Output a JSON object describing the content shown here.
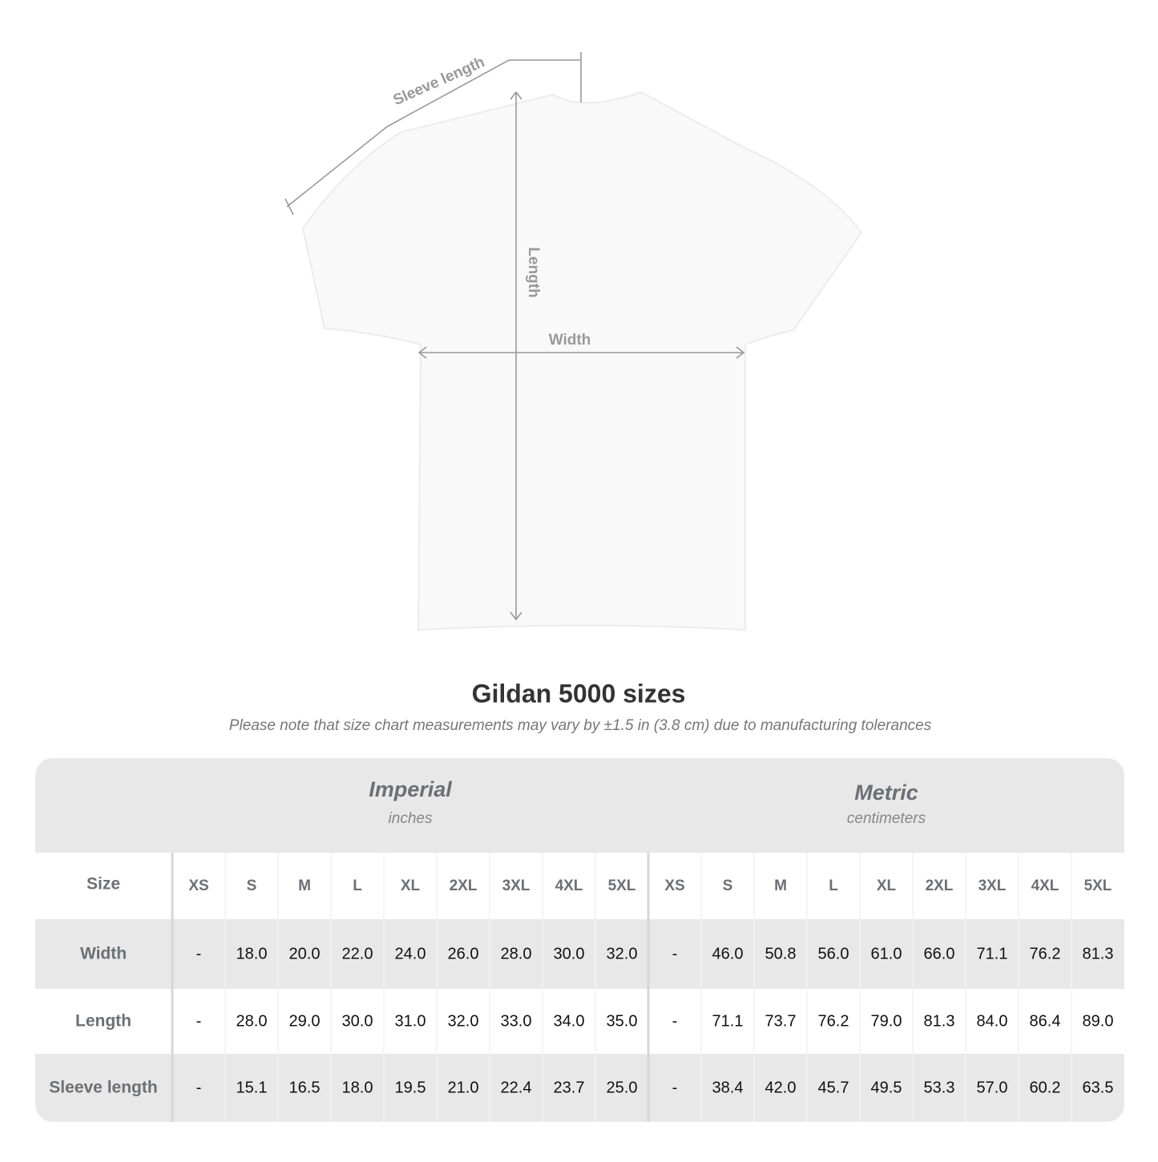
{
  "diagram": {
    "labels": {
      "sleeve_length": "Sleeve length",
      "length": "Length",
      "width": "Width"
    }
  },
  "header": {
    "title": "Gildan 5000 sizes",
    "note": "Please note that size chart measurements may vary by ±1.5 in (3.8 cm) due to manufacturing tolerances"
  },
  "table": {
    "size_label": "Size",
    "groups": [
      {
        "name": "Imperial",
        "unit": "inches",
        "sizes": [
          "XS",
          "S",
          "M",
          "L",
          "XL",
          "2XL",
          "3XL",
          "4XL",
          "5XL"
        ]
      },
      {
        "name": "Metric",
        "unit": "centimeters",
        "sizes": [
          "XS",
          "S",
          "M",
          "L",
          "XL",
          "2XL",
          "3XL",
          "4XL",
          "5XL"
        ]
      }
    ],
    "rows": [
      {
        "label": "Width",
        "values": [
          [
            "-",
            "18.0",
            "20.0",
            "22.0",
            "24.0",
            "26.0",
            "28.0",
            "30.0",
            "32.0"
          ],
          [
            "-",
            "46.0",
            "50.8",
            "56.0",
            "61.0",
            "66.0",
            "71.1",
            "76.2",
            "81.3"
          ]
        ]
      },
      {
        "label": "Length",
        "values": [
          [
            "-",
            "28.0",
            "29.0",
            "30.0",
            "31.0",
            "32.0",
            "33.0",
            "34.0",
            "35.0"
          ],
          [
            "-",
            "71.1",
            "73.7",
            "76.2",
            "79.0",
            "81.3",
            "84.0",
            "86.4",
            "89.0"
          ]
        ]
      },
      {
        "label": "Sleeve length",
        "values": [
          [
            "-",
            "15.1",
            "16.5",
            "18.0",
            "19.5",
            "21.0",
            "22.4",
            "23.7",
            "25.0"
          ],
          [
            "-",
            "38.4",
            "42.0",
            "45.7",
            "49.5",
            "53.3",
            "57.0",
            "60.2",
            "63.5"
          ]
        ]
      }
    ]
  }
}
